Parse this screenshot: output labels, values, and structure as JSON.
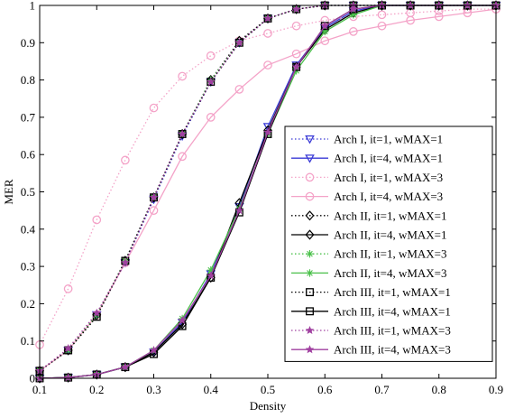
{
  "chart_data": {
    "type": "line",
    "xlabel": "Density",
    "ylabel": "MER",
    "xlim": [
      0.1,
      0.9
    ],
    "ylim": [
      0,
      1
    ],
    "xticks": [
      "0.1",
      "0.2",
      "0.3",
      "0.4",
      "0.5",
      "0.6",
      "0.7",
      "0.8",
      "0.9"
    ],
    "yticks": [
      "0",
      "0.1",
      "0.2",
      "0.3",
      "0.4",
      "0.5",
      "0.6",
      "0.7",
      "0.8",
      "0.9",
      "1"
    ],
    "grid": false,
    "legend_position": "right",
    "x": [
      0.1,
      0.15,
      0.2,
      0.25,
      0.3,
      0.35,
      0.4,
      0.45,
      0.5,
      0.55,
      0.6,
      0.65,
      0.7,
      0.75,
      0.8,
      0.85,
      0.9
    ],
    "series": [
      {
        "name": "Arch I, it=1, wMAX=1",
        "color": "#3a3ad6",
        "style": "dotted",
        "marker": "triangle-down",
        "values": [
          0.02,
          0.075,
          0.17,
          0.31,
          0.48,
          0.65,
          0.795,
          0.9,
          0.965,
          0.99,
          1.0,
          1.0,
          1.0,
          1.0,
          1.0,
          1.0,
          1.0
        ]
      },
      {
        "name": "Arch I, it=4, wMAX=1",
        "color": "#3a3ad6",
        "style": "solid",
        "marker": "triangle-down",
        "values": [
          0.0,
          0.002,
          0.01,
          0.03,
          0.07,
          0.15,
          0.28,
          0.46,
          0.675,
          0.84,
          0.94,
          0.985,
          1.0,
          1.0,
          1.0,
          1.0,
          1.0
        ]
      },
      {
        "name": "Arch I, it=1, wMAX=3",
        "color": "#f4a3c8",
        "style": "dotted",
        "marker": "circle",
        "values": [
          0.09,
          0.24,
          0.425,
          0.585,
          0.725,
          0.81,
          0.865,
          0.905,
          0.925,
          0.945,
          0.96,
          0.97,
          0.975,
          0.98,
          0.985,
          0.99,
          0.99
        ]
      },
      {
        "name": "Arch I, it=4, wMAX=3",
        "color": "#f4a3c8",
        "style": "solid",
        "marker": "circle",
        "values": [
          0.02,
          0.075,
          0.17,
          0.31,
          0.45,
          0.595,
          0.7,
          0.775,
          0.84,
          0.87,
          0.905,
          0.93,
          0.945,
          0.96,
          0.97,
          0.98,
          0.99
        ]
      },
      {
        "name": "Arch II, it=1, wMAX=1",
        "color": "#000000",
        "style": "dotted",
        "marker": "diamond",
        "values": [
          0.02,
          0.075,
          0.17,
          0.315,
          0.485,
          0.655,
          0.8,
          0.905,
          0.965,
          0.99,
          1.0,
          1.0,
          1.0,
          1.0,
          1.0,
          1.0,
          1.0
        ]
      },
      {
        "name": "Arch II, it=4, wMAX=1",
        "color": "#000000",
        "style": "solid",
        "marker": "diamond",
        "values": [
          0.0,
          0.002,
          0.01,
          0.03,
          0.07,
          0.145,
          0.27,
          0.47,
          0.665,
          0.835,
          0.935,
          0.98,
          1.0,
          1.0,
          1.0,
          1.0,
          1.0
        ]
      },
      {
        "name": "Arch II, it=1, wMAX=3",
        "color": "#4ac04a",
        "style": "dotted",
        "marker": "asterisk",
        "values": [
          0.02,
          0.075,
          0.17,
          0.315,
          0.485,
          0.655,
          0.8,
          0.9,
          0.965,
          0.99,
          1.0,
          1.0,
          1.0,
          1.0,
          1.0,
          1.0,
          1.0
        ]
      },
      {
        "name": "Arch II, it=4, wMAX=3",
        "color": "#4ac04a",
        "style": "solid",
        "marker": "asterisk",
        "values": [
          0.0,
          0.002,
          0.01,
          0.03,
          0.075,
          0.16,
          0.29,
          0.455,
          0.655,
          0.825,
          0.93,
          0.975,
          1.0,
          1.0,
          1.0,
          1.0,
          1.0
        ]
      },
      {
        "name": "Arch III, it=1, wMAX=1",
        "color": "#000000",
        "style": "dotted",
        "marker": "square",
        "values": [
          0.02,
          0.075,
          0.165,
          0.315,
          0.485,
          0.655,
          0.795,
          0.9,
          0.965,
          0.99,
          1.0,
          1.0,
          1.0,
          1.0,
          1.0,
          1.0,
          1.0
        ]
      },
      {
        "name": "Arch III, it=4, wMAX=1",
        "color": "#000000",
        "style": "solid",
        "marker": "square",
        "values": [
          0.0,
          0.002,
          0.01,
          0.03,
          0.065,
          0.14,
          0.27,
          0.445,
          0.655,
          0.835,
          0.945,
          0.99,
          1.0,
          1.0,
          1.0,
          1.0,
          1.0
        ]
      },
      {
        "name": "Arch III, it=1, wMAX=3",
        "color": "#a040a0",
        "style": "dotted",
        "marker": "star",
        "values": [
          0.02,
          0.08,
          0.175,
          0.31,
          0.485,
          0.655,
          0.795,
          0.9,
          0.965,
          0.99,
          1.0,
          1.0,
          1.0,
          1.0,
          1.0,
          1.0,
          1.0
        ]
      },
      {
        "name": "Arch III, it=4, wMAX=3",
        "color": "#a040a0",
        "style": "solid",
        "marker": "star",
        "values": [
          0.0,
          0.002,
          0.01,
          0.03,
          0.075,
          0.155,
          0.275,
          0.45,
          0.66,
          0.835,
          0.945,
          0.99,
          1.0,
          1.0,
          1.0,
          1.0,
          1.0
        ]
      }
    ]
  }
}
